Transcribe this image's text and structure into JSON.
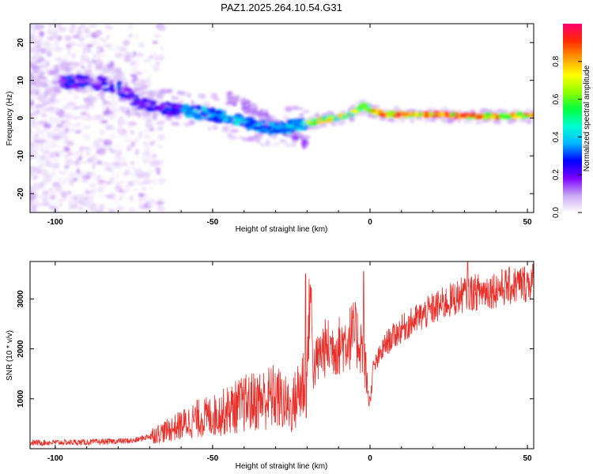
{
  "title": "PAZ1.2025.264.10.54.G31",
  "chart_data": [
    {
      "type": "heatmap",
      "name": "spectrogram",
      "xlabel": "Height of straight line (km)",
      "ylabel": "Frequency (Hz)",
      "xlim": [
        -108,
        52
      ],
      "ylim": [
        -25,
        25
      ],
      "xticks": [
        -100,
        -50,
        0,
        50
      ],
      "yticks": [
        20,
        10,
        0,
        -10,
        -20
      ],
      "colorbar": {
        "label": "Normalized spectral amplitude",
        "range": [
          0,
          1
        ],
        "ticks": [
          0.0,
          0.2,
          0.4,
          0.6,
          0.8
        ],
        "colormap": [
          "#ffffff",
          "#c9a6f2",
          "#7c00ff",
          "#0000ff",
          "#00b4ff",
          "#00ffd5",
          "#00ff40",
          "#8cff00",
          "#ffff00",
          "#ff9a00",
          "#ff2a00",
          "#ff0070"
        ]
      },
      "ridge": {
        "description": "Dominant frequency ridge (Hz) vs height (km)",
        "x": [
          -95,
          -90,
          -80,
          -75,
          -70,
          -60,
          -50,
          -40,
          -30,
          -20,
          -15,
          -10,
          -5,
          -2,
          0,
          5,
          10,
          20,
          30,
          40,
          50
        ],
        "y": [
          9.5,
          10,
          8,
          5,
          3,
          2,
          1,
          -1,
          -3,
          -1.5,
          -0.5,
          0.2,
          1.5,
          3.5,
          2,
          1,
          1,
          1,
          0.5,
          0.5,
          0.8
        ]
      }
    },
    {
      "type": "line",
      "name": "snr",
      "xlabel": "Height of straight line (km)",
      "ylabel": "SNR (10 * v/v)",
      "xlim": [
        -108,
        52
      ],
      "ylim": [
        0,
        3750
      ],
      "xticks": [
        -100,
        -50,
        0,
        50
      ],
      "yticks": [
        1000,
        2000,
        3000
      ],
      "color": "#e8302b",
      "trend": {
        "description": "Approximate SNR envelope (noisy trace)",
        "x": [
          -108,
          -90,
          -75,
          -65,
          -55,
          -50,
          -40,
          -30,
          -25,
          -20,
          -19,
          -18,
          -15,
          -10,
          -5,
          -2,
          -1,
          0,
          1,
          5,
          10,
          20,
          30,
          40,
          52
        ],
        "y": [
          120,
          130,
          160,
          350,
          600,
          650,
          900,
          1050,
          800,
          1500,
          3300,
          1600,
          2000,
          2050,
          2300,
          2000,
          1300,
          900,
          1600,
          2100,
          2400,
          2800,
          3100,
          3200,
          3350
        ]
      },
      "spikes": [
        {
          "x": -20.5,
          "y": 3500
        },
        {
          "x": -2,
          "y": 3550
        },
        {
          "x": 31,
          "y": 3750
        }
      ]
    }
  ]
}
